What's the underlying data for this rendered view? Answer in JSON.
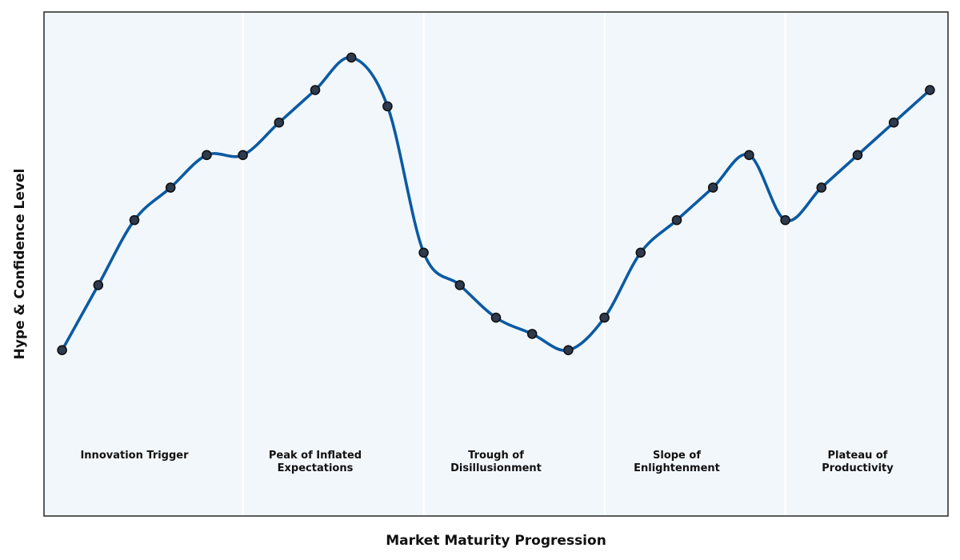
{
  "colors": {
    "line": "#0b5aa3",
    "marker_fill": "#2e3a4e",
    "marker_edge": "#111111",
    "plot_background": "#f2f7fb",
    "frame": "#333333",
    "divider": "#ffffff"
  },
  "chart_data": {
    "type": "line",
    "xlabel": "Market Maturity Progression",
    "ylabel": "Hype & Confidence Level",
    "grid": false,
    "x_ticks_shown": false,
    "y_ticks_shown": false,
    "xlim": [
      -0.5,
      24.5
    ],
    "ylim": [
      -1.1,
      14.4
    ],
    "x": [
      0,
      1,
      2,
      3,
      4,
      5,
      6,
      7,
      8,
      9,
      10,
      11,
      12,
      13,
      14,
      15,
      16,
      17,
      18,
      19,
      20,
      21,
      22,
      23,
      24
    ],
    "series": [
      {
        "values": [
          4.0,
          6.0,
          8.0,
          9.0,
          10.0,
          10.0,
          11.0,
          12.0,
          13.0,
          11.5,
          7.0,
          6.0,
          5.0,
          4.5,
          4.0,
          5.0,
          7.0,
          8.0,
          9.0,
          10.0,
          8.0,
          9.0,
          10.0,
          11.0,
          12.0
        ]
      }
    ],
    "phases": [
      {
        "label_lines": [
          "Innovation Trigger"
        ],
        "x_start": -0.5,
        "x_end": 5.0,
        "label_x": 2.0
      },
      {
        "label_lines": [
          "Peak of Inflated",
          "Expectations"
        ],
        "x_start": 5.0,
        "x_end": 10.0,
        "label_x": 7.0
      },
      {
        "label_lines": [
          "Trough of",
          "Disillusionment"
        ],
        "x_start": 10.0,
        "x_end": 15.0,
        "label_x": 12.0
      },
      {
        "label_lines": [
          "Slope of",
          "Enlightenment"
        ],
        "x_start": 15.0,
        "x_end": 20.0,
        "label_x": 17.0
      },
      {
        "label_lines": [
          "Plateau of",
          "Productivity"
        ],
        "x_start": 20.0,
        "x_end": 24.5,
        "label_x": 22.0
      }
    ],
    "phase_label_y": 0.8
  }
}
